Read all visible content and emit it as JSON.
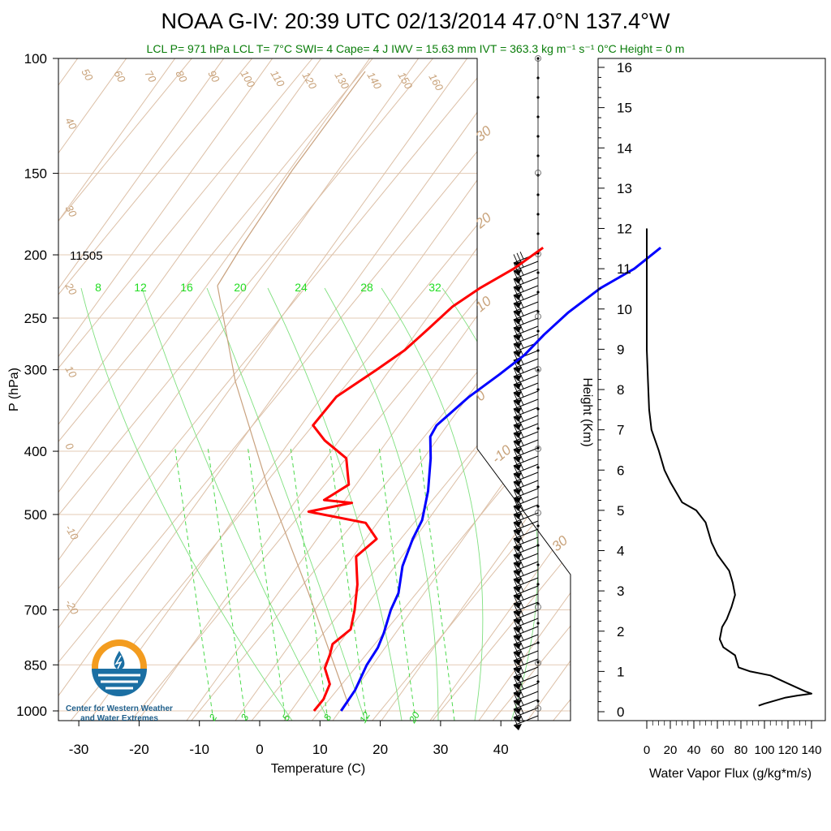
{
  "title": {
    "main": "NOAA G-IV: 20:39 UTC 02/13/2014  47.0°N 137.4°W",
    "subtitle": "LCL P= 971 hPa  LCL T= 7°C  SWI= 4  Cape= 4 J  IWV = 15.63 mm  IVT = 363.3 kg m⁻¹ s⁻¹  0°C Height = 0 m"
  },
  "logo": {
    "line1": "Center for Western Weather",
    "line2": "and Water Extremes"
  },
  "chart_data": [
    {
      "type": "line",
      "name": "skew-t",
      "ylabel": "P (hPa)",
      "xlabel": "Temperature (C)",
      "y_scale": "log",
      "ylim": [
        1000,
        100
      ],
      "xlim": [
        -34,
        52
      ],
      "p_ticks": [
        100,
        150,
        200,
        250,
        300,
        400,
        500,
        700,
        850,
        1000
      ],
      "t_ticks": [
        -30,
        -20,
        -10,
        0,
        10,
        20,
        30,
        40
      ],
      "height_label": "11505",
      "series": [
        {
          "color": "#0000ff",
          "points": [
            [
              3.5,
              195
            ],
            [
              2,
              210
            ],
            [
              -1,
              225
            ],
            [
              -3,
              245
            ],
            [
              -4,
              265
            ],
            [
              -4.5,
              285
            ],
            [
              -6,
              305
            ],
            [
              -8,
              330
            ],
            [
              -9.5,
              365
            ],
            [
              -9,
              380
            ],
            [
              -6,
              410
            ],
            [
              -2,
              460
            ],
            [
              1,
              510
            ],
            [
              2,
              545
            ],
            [
              4,
              600
            ],
            [
              7,
              660
            ],
            [
              8,
              700
            ],
            [
              10,
              760
            ],
            [
              11,
              800
            ],
            [
              11.5,
              850
            ],
            [
              13,
              930
            ],
            [
              13.5,
              1000
            ]
          ]
        },
        {
          "color": "#ff0000",
          "points": [
            [
              -16,
              195
            ],
            [
              -18,
              210
            ],
            [
              -21,
              225
            ],
            [
              -23,
              240
            ],
            [
              -24,
              260
            ],
            [
              -25,
              280
            ],
            [
              -27,
              300
            ],
            [
              -30,
              330
            ],
            [
              -30,
              365
            ],
            [
              -26,
              385
            ],
            [
              -20,
              410
            ],
            [
              -16,
              450
            ],
            [
              -18,
              475
            ],
            [
              -13,
              480
            ],
            [
              -19,
              495
            ],
            [
              -8,
              515
            ],
            [
              -4,
              545
            ],
            [
              -5,
              580
            ],
            [
              -1,
              640
            ],
            [
              2,
              700
            ],
            [
              4,
              750
            ],
            [
              3,
              790
            ],
            [
              4,
              820
            ],
            [
              5,
              860
            ],
            [
              8,
              910
            ],
            [
              9,
              960
            ],
            [
              9,
              1000
            ]
          ]
        }
      ],
      "mixing_ratio_labels_top": [
        "8",
        "12",
        "16",
        "20",
        "24",
        "28",
        "32"
      ],
      "mixing_ratio_labels_bottom": [
        "2",
        "3",
        "5",
        "8",
        "12",
        "20"
      ],
      "theta_labels": [
        "50",
        "60",
        "70",
        "80",
        "90",
        "100",
        "110",
        "120",
        "130",
        "140",
        "150",
        "160",
        "40",
        "30",
        "20",
        "10",
        "0",
        "-10",
        "-20"
      ],
      "theta_e_labels": [
        "30",
        "20",
        "10",
        "0",
        "-10",
        "30"
      ]
    },
    {
      "type": "line",
      "name": "water-vapor-flux",
      "xlabel": "Water Vapor Flux (g/kg*m/s)",
      "ylabel": "Height (Km)",
      "xlim": [
        0,
        140
      ],
      "ylim": [
        0,
        16
      ],
      "x_ticks": [
        0,
        20,
        40,
        60,
        80,
        100,
        120,
        140
      ],
      "y_ticks": [
        0,
        1,
        2,
        3,
        4,
        5,
        6,
        7,
        8,
        9,
        10,
        11,
        12,
        13,
        14,
        15,
        16
      ],
      "series": [
        {
          "color": "#000000",
          "points": [
            [
              0,
              12
            ],
            [
              0,
              10
            ],
            [
              0,
              9
            ],
            [
              1,
              8.2
            ],
            [
              2,
              7.5
            ],
            [
              4,
              7
            ],
            [
              10,
              6.5
            ],
            [
              15,
              6
            ],
            [
              20,
              5.7
            ],
            [
              30,
              5.2
            ],
            [
              42,
              5
            ],
            [
              50,
              4.7
            ],
            [
              55,
              4.2
            ],
            [
              60,
              3.9
            ],
            [
              70,
              3.5
            ],
            [
              73,
              3.2
            ],
            [
              75,
              2.9
            ],
            [
              72,
              2.6
            ],
            [
              68,
              2.3
            ],
            [
              64,
              2.1
            ],
            [
              62,
              1.8
            ],
            [
              65,
              1.6
            ],
            [
              75,
              1.4
            ],
            [
              78,
              1.1
            ],
            [
              88,
              1.0
            ],
            [
              105,
              0.9
            ],
            [
              120,
              0.7
            ],
            [
              135,
              0.5
            ],
            [
              140,
              0.45
            ],
            [
              128,
              0.4
            ],
            [
              118,
              0.35
            ],
            [
              112,
              0.3
            ],
            [
              100,
              0.2
            ],
            [
              95,
              0.15
            ]
          ]
        }
      ]
    }
  ]
}
